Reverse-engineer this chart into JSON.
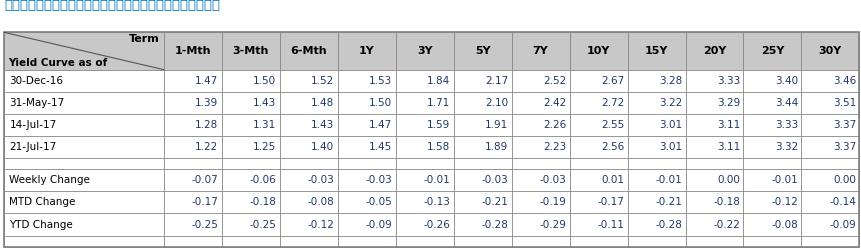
{
  "title": "อัตราผลตอบแทนพันธบัตรรัฐบาล",
  "header_label_top": "Term",
  "header_label_bottom": "Yield Curve as of",
  "col_headers": [
    "1-Mth",
    "3-Mth",
    "6-Mth",
    "1Y",
    "3Y",
    "5Y",
    "7Y",
    "10Y",
    "15Y",
    "20Y",
    "25Y",
    "30Y"
  ],
  "data_rows": [
    [
      "30-Dec-16",
      "1.47",
      "1.50",
      "1.52",
      "1.53",
      "1.84",
      "2.17",
      "2.52",
      "2.67",
      "3.28",
      "3.33",
      "3.40",
      "3.46"
    ],
    [
      "31-May-17",
      "1.39",
      "1.43",
      "1.48",
      "1.50",
      "1.71",
      "2.10",
      "2.42",
      "2.72",
      "3.22",
      "3.29",
      "3.44",
      "3.51"
    ],
    [
      "14-Jul-17",
      "1.28",
      "1.31",
      "1.43",
      "1.47",
      "1.59",
      "1.91",
      "2.26",
      "2.55",
      "3.01",
      "3.11",
      "3.33",
      "3.37"
    ],
    [
      "21-Jul-17",
      "1.22",
      "1.25",
      "1.40",
      "1.45",
      "1.58",
      "1.89",
      "2.23",
      "2.56",
      "3.01",
      "3.11",
      "3.32",
      "3.37"
    ]
  ],
  "change_rows": [
    [
      "Weekly Change",
      "-0.07",
      "-0.06",
      "-0.03",
      "-0.03",
      "-0.01",
      "-0.03",
      "-0.03",
      "0.01",
      "-0.01",
      "0.00",
      "-0.01",
      "0.00"
    ],
    [
      "MTD Change",
      "-0.17",
      "-0.18",
      "-0.08",
      "-0.05",
      "-0.13",
      "-0.21",
      "-0.19",
      "-0.17",
      "-0.21",
      "-0.18",
      "-0.12",
      "-0.14"
    ],
    [
      "YTD Change",
      "-0.25",
      "-0.25",
      "-0.12",
      "-0.09",
      "-0.26",
      "-0.28",
      "-0.29",
      "-0.11",
      "-0.28",
      "-0.22",
      "-0.08",
      "-0.09"
    ]
  ],
  "header_bg": "#C8C8C8",
  "white": "#FFFFFF",
  "number_color": "#1F3864",
  "label_color": "#000000",
  "title_color": "#0070C0",
  "border_color": "#7F7F7F",
  "font_size": 7.5,
  "header_font_size": 8.0,
  "title_font_size": 9.5
}
